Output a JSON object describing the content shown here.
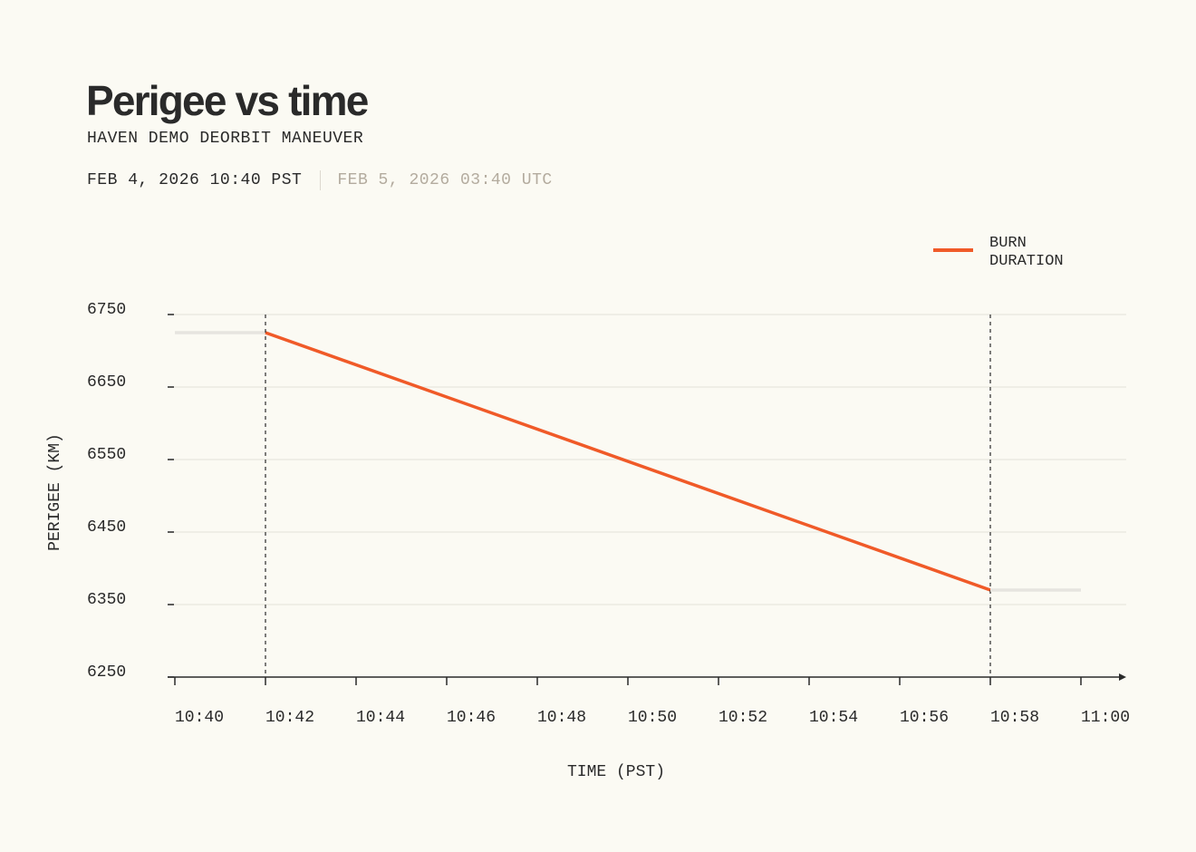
{
  "chart_data": {
    "type": "line",
    "title": "Perigee vs time",
    "subtitle": "HAVEN DEMO DEORBIT MANEUVER",
    "date_local": "FEB 4, 2026 10:40 PST",
    "date_utc": "FEB 5, 2026 03:40 UTC",
    "x_label": "TIME (PST)",
    "y_label": "PERIGEE (KM)",
    "xlim": [
      "10:40",
      "11:00"
    ],
    "xticks": [
      "10:40",
      "10:42",
      "10:44",
      "10:46",
      "10:48",
      "10:50",
      "10:52",
      "10:54",
      "10:56",
      "10:58",
      "11:00"
    ],
    "ylim": [
      6250,
      6750
    ],
    "yticks": [
      6250,
      6350,
      6450,
      6550,
      6650,
      6750
    ],
    "grid": true,
    "legend": "top-right",
    "series": [
      {
        "color": "#e6e4df",
        "x": [
          "10:40",
          "10:42"
        ],
        "values": [
          6725,
          6725
        ]
      },
      {
        "name": "BURN DURATION",
        "color": "#f05a28",
        "x": [
          "10:42",
          "10:58"
        ],
        "values": [
          6725,
          6370
        ]
      },
      {
        "color": "#e6e4df",
        "x": [
          "10:58",
          "11:00"
        ],
        "values": [
          6370,
          6370
        ]
      }
    ]
  }
}
